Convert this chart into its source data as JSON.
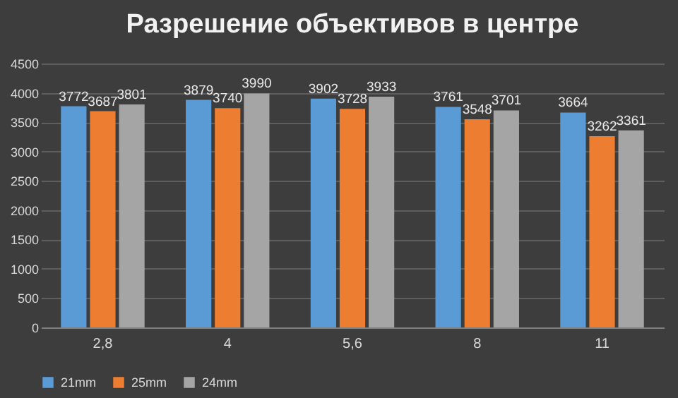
{
  "chart_data": {
    "type": "bar",
    "title": "Разрешение объективов в центре",
    "categories": [
      "2,8",
      "4",
      "5,6",
      "8",
      "11"
    ],
    "series": [
      {
        "name": "21mm",
        "color": "#5b9bd5",
        "values": [
          3772,
          3879,
          3902,
          3761,
          3664
        ]
      },
      {
        "name": "25mm",
        "color": "#ed7d31",
        "values": [
          3687,
          3740,
          3728,
          3548,
          3262
        ]
      },
      {
        "name": "24mm",
        "color": "#a5a5a5",
        "values": [
          3801,
          3990,
          3933,
          3701,
          3361
        ]
      }
    ],
    "ylim": [
      0,
      4500
    ],
    "yticks": [
      0,
      500,
      1000,
      1500,
      2000,
      2500,
      3000,
      3500,
      4000,
      4500
    ],
    "grid": "y",
    "legend": "bottom",
    "data_labels": true
  }
}
